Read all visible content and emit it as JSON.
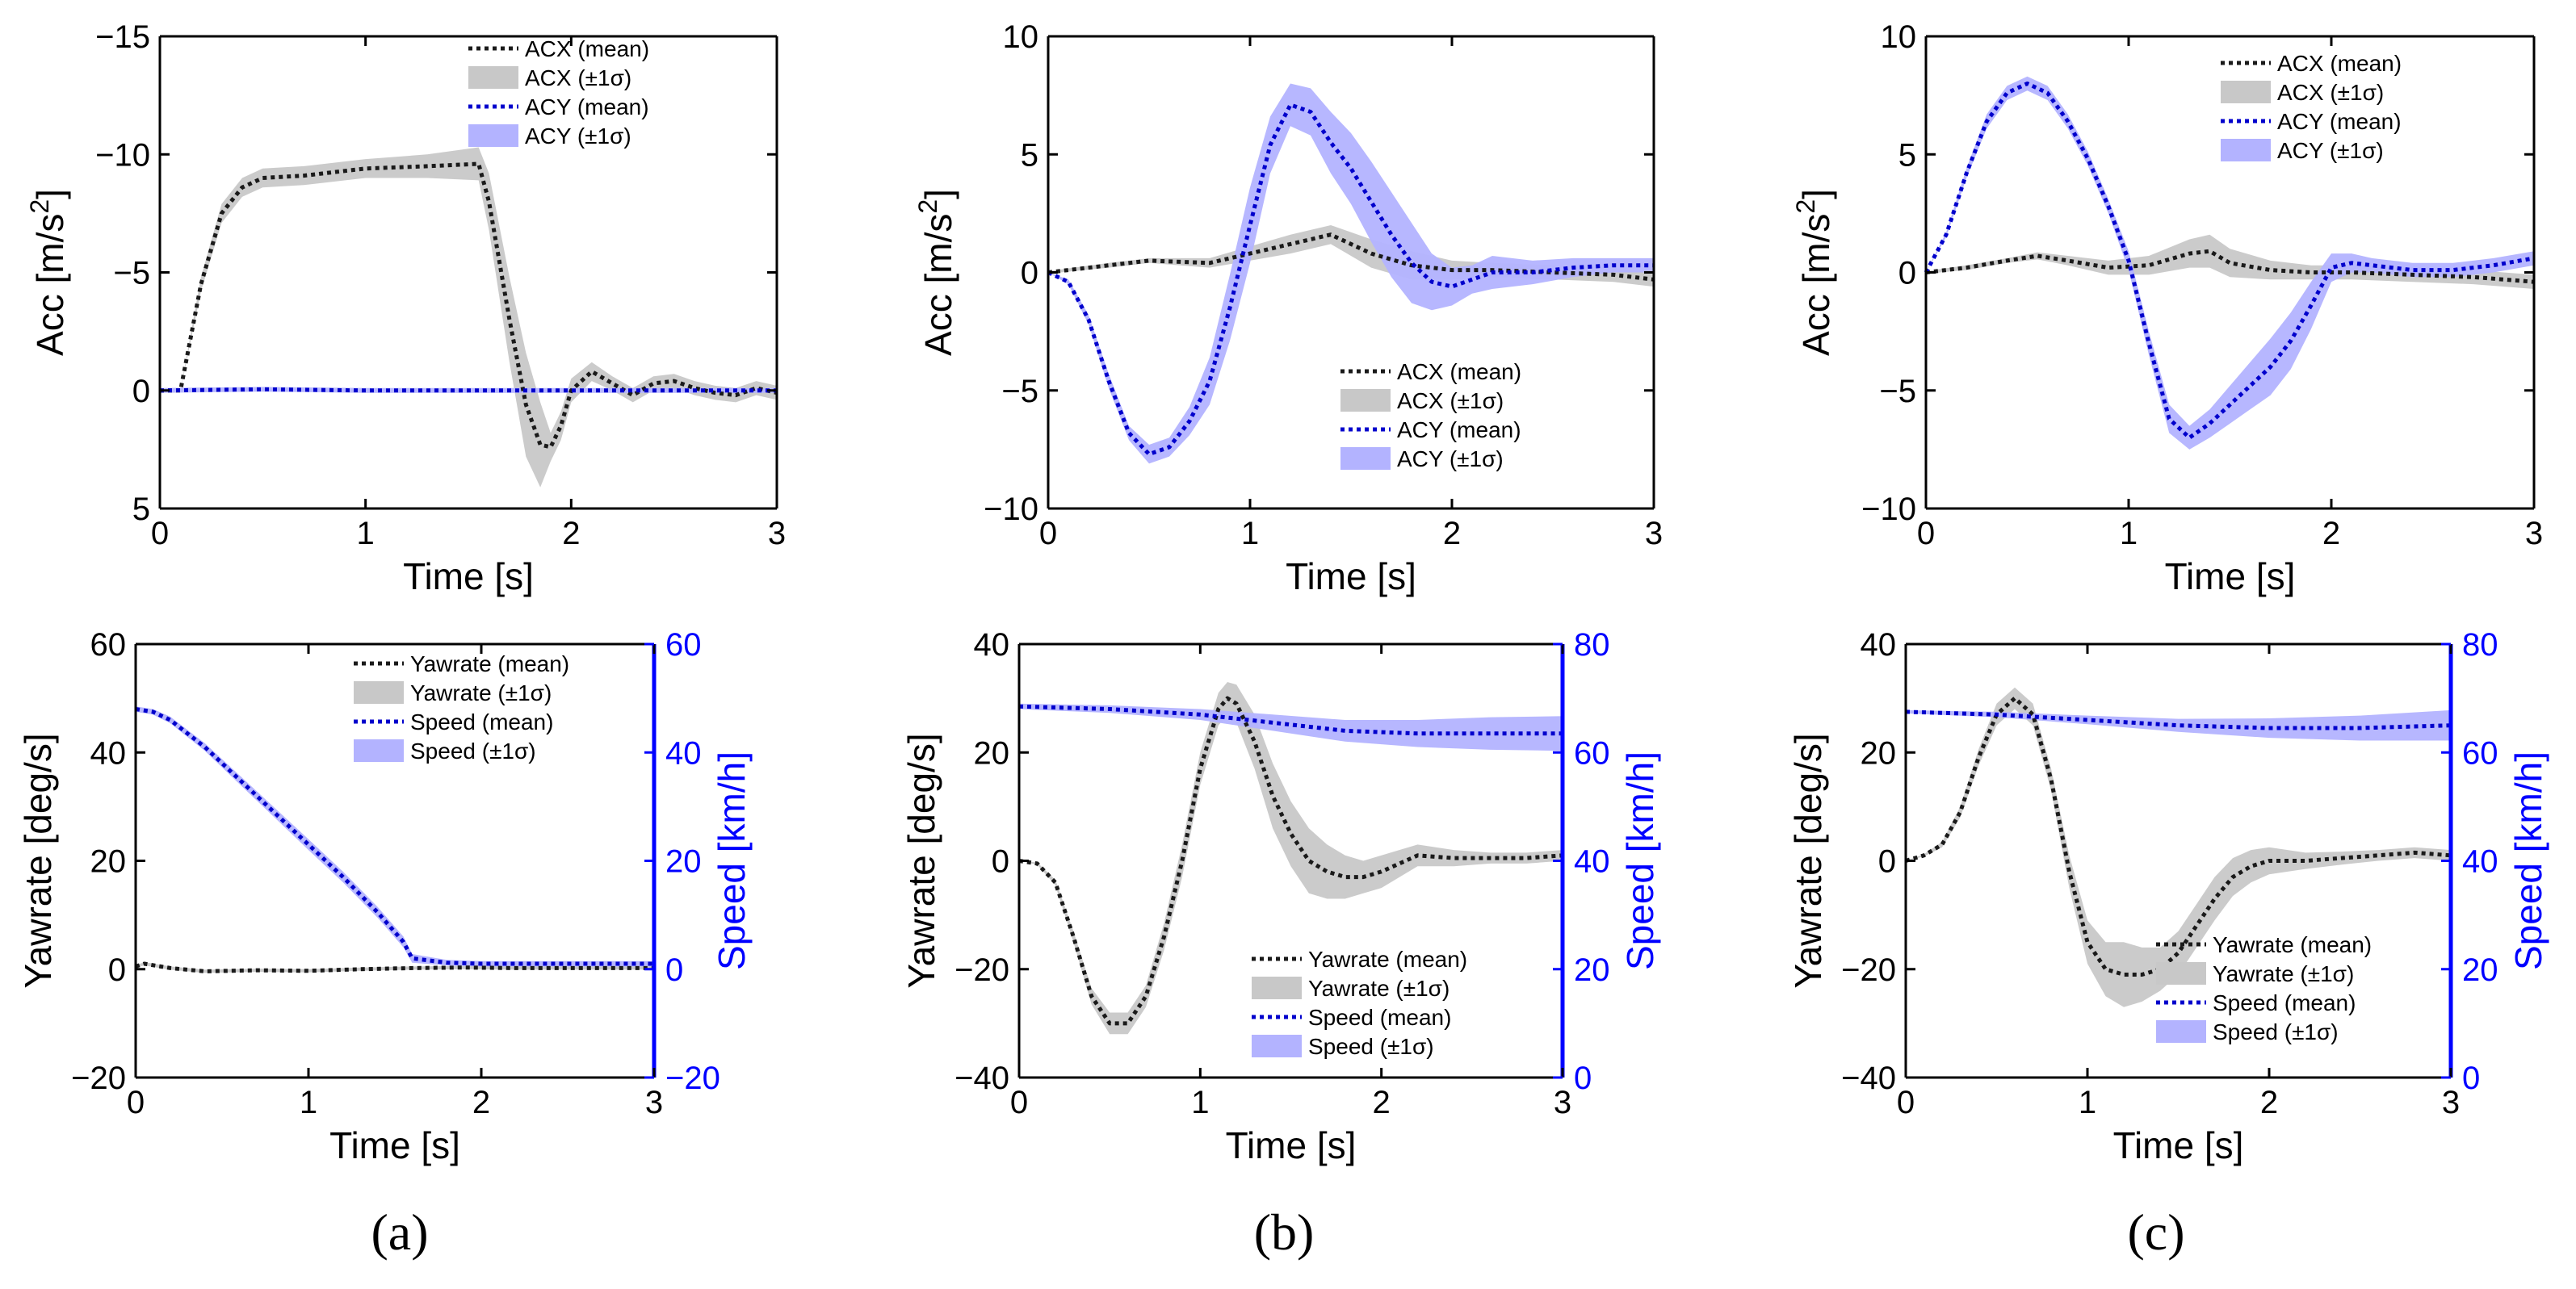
{
  "chart_data": [
    {
      "id": "a-acc",
      "type": "line",
      "panel": "a",
      "xlabel": "Time [s]",
      "ylabel": "Acc [m/s",
      "ylabel_sup": "2",
      "ylabel_tail": "]",
      "xlim": [
        0,
        3
      ],
      "ylim": [
        -15,
        5
      ],
      "y_reversed": true,
      "xticks": [
        "0",
        "1",
        "2",
        "3"
      ],
      "yticks": [
        "−15",
        "−10",
        "−5",
        "0",
        "5"
      ],
      "ytick_values": [
        -15,
        -10,
        -5,
        0,
        5
      ],
      "legend_position": "top-right",
      "series": [
        {
          "name": "ACX (mean)",
          "band_name": "ACX (±1σ)",
          "color": "#1a1a1a",
          "band_color": "#c8c8c8",
          "x": [
            0,
            0.1,
            0.2,
            0.3,
            0.4,
            0.5,
            0.7,
            1.0,
            1.3,
            1.55,
            1.6,
            1.7,
            1.78,
            1.85,
            1.9,
            1.95,
            2.0,
            2.1,
            2.2,
            2.3,
            2.4,
            2.5,
            2.6,
            2.7,
            2.8,
            2.9,
            3.0
          ],
          "y": [
            0,
            0,
            -4.5,
            -7.5,
            -8.6,
            -9.0,
            -9.1,
            -9.4,
            -9.5,
            -9.6,
            -8.0,
            -3.0,
            0.6,
            2.3,
            2.4,
            1.5,
            0,
            -0.8,
            -0.3,
            0.2,
            -0.3,
            -0.4,
            -0.1,
            0.1,
            0.2,
            -0.1,
            0.1
          ],
          "band": [
            0,
            0,
            0.3,
            0.4,
            0.4,
            0.4,
            0.4,
            0.4,
            0.5,
            0.7,
            1.2,
            1.8,
            2.2,
            1.8,
            0.6,
            0.6,
            0.5,
            0.4,
            0.3,
            0.3,
            0.3,
            0.3,
            0.3,
            0.3,
            0.3,
            0.3,
            0.3
          ]
        },
        {
          "name": "ACY (mean)",
          "band_name": "ACY (±1σ)",
          "color": "#0000cc",
          "band_color": "#b3b3ff",
          "x": [
            0,
            0.5,
            1,
            1.5,
            2,
            2.5,
            3
          ],
          "y": [
            0,
            -0.05,
            0,
            0,
            0,
            0,
            0
          ],
          "band": [
            0.1,
            0.1,
            0.1,
            0.1,
            0.1,
            0.1,
            0.1
          ]
        }
      ]
    },
    {
      "id": "b-acc",
      "type": "line",
      "panel": "b",
      "xlabel": "Time [s]",
      "ylabel": "Acc [m/s",
      "ylabel_sup": "2",
      "ylabel_tail": "]",
      "xlim": [
        0,
        3
      ],
      "ylim": [
        -10,
        10
      ],
      "y_reversed": false,
      "xticks": [
        "0",
        "1",
        "2",
        "3"
      ],
      "yticks": [
        "−10",
        "−5",
        "0",
        "5",
        "10"
      ],
      "ytick_values": [
        -10,
        -5,
        0,
        5,
        10
      ],
      "legend_position": "bottom-right",
      "series": [
        {
          "name": "ACX (mean)",
          "band_name": "ACX (±1σ)",
          "color": "#1a1a1a",
          "band_color": "#c8c8c8",
          "x": [
            0,
            0.3,
            0.5,
            0.8,
            1.0,
            1.2,
            1.4,
            1.6,
            1.8,
            2.0,
            2.2,
            2.5,
            2.8,
            3.0
          ],
          "y": [
            0,
            0.3,
            0.5,
            0.4,
            0.8,
            1.2,
            1.6,
            0.8,
            0.3,
            0.1,
            0.1,
            0,
            -0.1,
            -0.3
          ],
          "band": [
            0.05,
            0.1,
            0.1,
            0.2,
            0.3,
            0.4,
            0.4,
            0.6,
            0.6,
            0.4,
            0.3,
            0.3,
            0.3,
            0.3
          ]
        },
        {
          "name": "ACY (mean)",
          "band_name": "ACY (±1σ)",
          "color": "#0000cc",
          "band_color": "#b3b3ff",
          "x": [
            0,
            0.1,
            0.2,
            0.3,
            0.4,
            0.5,
            0.6,
            0.7,
            0.8,
            0.9,
            1.0,
            1.1,
            1.2,
            1.3,
            1.4,
            1.5,
            1.6,
            1.7,
            1.8,
            1.9,
            2.0,
            2.1,
            2.2,
            2.4,
            2.6,
            2.8,
            3.0
          ],
          "y": [
            0,
            -0.4,
            -2.0,
            -4.6,
            -6.8,
            -7.7,
            -7.4,
            -6.3,
            -4.6,
            -1.5,
            2.0,
            5.4,
            7.1,
            6.8,
            5.5,
            4.4,
            3.0,
            1.6,
            0.4,
            -0.4,
            -0.6,
            -0.3,
            0,
            0,
            0.2,
            0.3,
            0.3
          ],
          "band": [
            0,
            0.1,
            0.2,
            0.3,
            0.3,
            0.4,
            0.4,
            0.6,
            1.0,
            1.4,
            1.6,
            1.2,
            0.9,
            1.0,
            1.3,
            1.5,
            1.7,
            1.8,
            1.7,
            1.2,
            0.8,
            0.6,
            0.7,
            0.5,
            0.4,
            0.3,
            0.3
          ]
        }
      ]
    },
    {
      "id": "c-acc",
      "type": "line",
      "panel": "c",
      "xlabel": "Time [s]",
      "ylabel": "Acc [m/s",
      "ylabel_sup": "2",
      "ylabel_tail": "]",
      "xlim": [
        0,
        3
      ],
      "ylim": [
        -10,
        10
      ],
      "y_reversed": false,
      "xticks": [
        "0",
        "1",
        "2",
        "3"
      ],
      "yticks": [
        "−10",
        "−5",
        "0",
        "5",
        "10"
      ],
      "ytick_values": [
        -10,
        -5,
        0,
        5,
        10
      ],
      "legend_position": "top-right",
      "series": [
        {
          "name": "ACX (mean)",
          "band_name": "ACX (±1σ)",
          "color": "#1a1a1a",
          "band_color": "#c8c8c8",
          "x": [
            0,
            0.2,
            0.4,
            0.55,
            0.7,
            0.9,
            1.1,
            1.3,
            1.4,
            1.5,
            1.7,
            1.9,
            2.1,
            2.4,
            2.7,
            3.0
          ],
          "y": [
            0,
            0.2,
            0.5,
            0.7,
            0.5,
            0.2,
            0.3,
            0.8,
            0.9,
            0.4,
            0.1,
            0,
            0,
            -0.1,
            -0.2,
            -0.4
          ],
          "band": [
            0.05,
            0.1,
            0.1,
            0.15,
            0.2,
            0.3,
            0.4,
            0.6,
            0.7,
            0.6,
            0.4,
            0.3,
            0.3,
            0.3,
            0.3,
            0.3
          ]
        },
        {
          "name": "ACY (mean)",
          "band_name": "ACY (±1σ)",
          "color": "#0000cc",
          "band_color": "#b3b3ff",
          "x": [
            0,
            0.1,
            0.2,
            0.3,
            0.4,
            0.5,
            0.6,
            0.7,
            0.8,
            0.9,
            1.0,
            1.1,
            1.2,
            1.3,
            1.4,
            1.5,
            1.6,
            1.7,
            1.8,
            1.9,
            2.0,
            2.1,
            2.2,
            2.4,
            2.6,
            2.8,
            3.0
          ],
          "y": [
            0,
            1.6,
            4.2,
            6.4,
            7.6,
            8.0,
            7.6,
            6.4,
            4.8,
            2.8,
            0.5,
            -3.0,
            -6.2,
            -7.0,
            -6.4,
            -5.6,
            -4.8,
            -4.0,
            -2.9,
            -1.4,
            0.2,
            0.4,
            0.3,
            0.1,
            0.1,
            0.3,
            0.6
          ],
          "band": [
            0,
            0.1,
            0.2,
            0.3,
            0.3,
            0.3,
            0.3,
            0.3,
            0.3,
            0.3,
            0.4,
            0.5,
            0.6,
            0.5,
            0.6,
            0.8,
            1.0,
            1.2,
            1.2,
            1.0,
            0.6,
            0.4,
            0.3,
            0.3,
            0.3,
            0.3,
            0.3
          ]
        }
      ]
    },
    {
      "id": "a-yaw",
      "type": "line",
      "panel": "a",
      "xlabel": "Time [s]",
      "ylabel": "Yawrate [deg/s]",
      "y2label": "Speed [km/h]",
      "xlim": [
        0,
        3
      ],
      "ylim": [
        -20,
        60
      ],
      "y2lim": [
        -20,
        60
      ],
      "xticks": [
        "0",
        "1",
        "2",
        "3"
      ],
      "yticks": [
        "−20",
        "0",
        "20",
        "40",
        "60"
      ],
      "ytick_values": [
        -20,
        0,
        20,
        40,
        60
      ],
      "y2ticks": [
        "−20",
        "0",
        "20",
        "40",
        "60"
      ],
      "y2tick_values": [
        -20,
        0,
        20,
        40,
        60
      ],
      "legend_position": "top-right",
      "series": [
        {
          "name": "Yawrate (mean)",
          "band_name": "Yawrate (±1σ)",
          "color": "#1a1a1a",
          "band_color": "#c8c8c8",
          "axis": "left",
          "x": [
            0,
            0.05,
            0.2,
            0.4,
            0.7,
            1.0,
            1.3,
            1.6,
            1.9,
            2.2,
            2.6,
            3.0
          ],
          "y": [
            0.5,
            1.0,
            0.2,
            -0.4,
            -0.2,
            -0.3,
            0,
            0.2,
            0.3,
            0.2,
            0.2,
            0.2
          ],
          "band": [
            0.2,
            0.3,
            0.3,
            0.3,
            0.3,
            0.3,
            0.3,
            0.3,
            0.3,
            0.3,
            0.3,
            0.3
          ]
        },
        {
          "name": "Speed (mean)",
          "band_name": "Speed (±1σ)",
          "color": "#0000cc",
          "band_color": "#b3b3ff",
          "axis": "right",
          "x": [
            0,
            0.1,
            0.2,
            0.4,
            0.6,
            0.8,
            1.0,
            1.2,
            1.4,
            1.55,
            1.6,
            1.8,
            2.0,
            2.5,
            3.0
          ],
          "y": [
            48,
            47.5,
            46,
            41,
            35,
            29,
            23,
            17,
            10.5,
            5,
            2,
            1.2,
            1,
            1,
            1
          ],
          "band": [
            0.5,
            0.5,
            0.6,
            0.7,
            0.8,
            0.9,
            1.0,
            1.0,
            1.0,
            1.0,
            0.8,
            0.5,
            0.5,
            0.5,
            0.5
          ]
        }
      ]
    },
    {
      "id": "b-yaw",
      "type": "line",
      "panel": "b",
      "xlabel": "Time [s]",
      "ylabel": "Yawrate [deg/s]",
      "y2label": "Speed [km/h]",
      "xlim": [
        0,
        3
      ],
      "ylim": [
        -40,
        40
      ],
      "y2lim": [
        0,
        80
      ],
      "xticks": [
        "0",
        "1",
        "2",
        "3"
      ],
      "yticks": [
        "−40",
        "−20",
        "0",
        "20",
        "40"
      ],
      "ytick_values": [
        -40,
        -20,
        0,
        20,
        40
      ],
      "y2ticks": [
        "0",
        "20",
        "40",
        "60",
        "80"
      ],
      "y2tick_values": [
        0,
        20,
        40,
        60,
        80
      ],
      "legend_position": "bottom-right",
      "series": [
        {
          "name": "Yawrate (mean)",
          "band_name": "Yawrate (±1σ)",
          "color": "#1a1a1a",
          "band_color": "#c8c8c8",
          "axis": "left",
          "x": [
            0,
            0.1,
            0.2,
            0.3,
            0.4,
            0.5,
            0.6,
            0.7,
            0.8,
            0.9,
            1.0,
            1.1,
            1.15,
            1.2,
            1.3,
            1.4,
            1.5,
            1.6,
            1.7,
            1.8,
            1.9,
            2.0,
            2.2,
            2.4,
            2.6,
            2.8,
            3.0
          ],
          "y": [
            0,
            -0.5,
            -4,
            -14,
            -25,
            -30,
            -30,
            -25,
            -14,
            0,
            17,
            28,
            30,
            29,
            22,
            12,
            5,
            0,
            -2,
            -3,
            -3,
            -2,
            1,
            0.5,
            0.5,
            0.5,
            1
          ],
          "band": [
            0,
            0.2,
            0.5,
            1,
            1.5,
            2,
            2,
            2,
            2.5,
            3,
            3,
            3,
            3,
            3.5,
            5,
            6,
            6,
            6,
            5,
            4,
            3,
            3,
            2,
            1.5,
            1,
            1,
            1
          ]
        },
        {
          "name": "Speed  (mean)",
          "band_name": "Speed  (±1σ)",
          "color": "#0000cc",
          "band_color": "#b3b3ff",
          "axis": "right",
          "x": [
            0,
            0.5,
            1.0,
            1.4,
            1.8,
            2.2,
            2.6,
            3.0
          ],
          "y": [
            68.5,
            68,
            67,
            65.5,
            64,
            63.5,
            63.5,
            63.5
          ],
          "band": [
            0.5,
            0.7,
            1.0,
            1.5,
            2.0,
            2.5,
            3.0,
            3.2
          ]
        }
      ]
    },
    {
      "id": "c-yaw",
      "type": "line",
      "panel": "c",
      "xlabel": "Time [s]",
      "ylabel": "Yawrate [deg/s]",
      "y2label": "Speed [km/h]",
      "xlim": [
        0,
        3
      ],
      "ylim": [
        -40,
        40
      ],
      "y2lim": [
        0,
        80
      ],
      "xticks": [
        "0",
        "1",
        "2",
        "3"
      ],
      "yticks": [
        "−40",
        "−20",
        "0",
        "20",
        "40"
      ],
      "ytick_values": [
        -40,
        -20,
        0,
        20,
        40
      ],
      "y2ticks": [
        "0",
        "20",
        "40",
        "60",
        "80"
      ],
      "y2tick_values": [
        0,
        20,
        40,
        60,
        80
      ],
      "legend_position": "bottom-right",
      "series": [
        {
          "name": "Yawrate (mean)",
          "band_name": "Yawrate (±1σ)",
          "color": "#1a1a1a",
          "band_color": "#c8c8c8",
          "axis": "left",
          "x": [
            0,
            0.1,
            0.2,
            0.3,
            0.4,
            0.5,
            0.6,
            0.7,
            0.8,
            0.9,
            1.0,
            1.1,
            1.2,
            1.3,
            1.4,
            1.5,
            1.6,
            1.7,
            1.8,
            1.9,
            2.0,
            2.2,
            2.4,
            2.6,
            2.8,
            3.0
          ],
          "y": [
            0,
            1,
            3,
            9,
            19,
            27,
            30,
            27,
            15,
            -2,
            -15,
            -20,
            -21,
            -21,
            -20,
            -17,
            -12,
            -7,
            -3,
            -1,
            0,
            0,
            0.5,
            1,
            1.5,
            1
          ],
          "band": [
            0,
            0.2,
            0.5,
            1,
            1.5,
            2,
            2,
            2,
            2,
            3,
            4,
            5,
            6,
            5,
            4,
            4,
            4,
            4,
            3.5,
            3,
            2.5,
            1.5,
            1.2,
            1,
            1,
            1
          ]
        },
        {
          "name": "Speed  (mean)",
          "band_name": "Speed  (±1σ)",
          "color": "#0000cc",
          "band_color": "#b3b3ff",
          "axis": "right",
          "x": [
            0,
            0.5,
            1.0,
            1.5,
            2.0,
            2.5,
            3.0
          ],
          "y": [
            67.5,
            67,
            66,
            65,
            64.5,
            64.5,
            65
          ],
          "band": [
            0.3,
            0.5,
            0.8,
            1.2,
            1.8,
            2.3,
            2.8
          ]
        }
      ]
    }
  ],
  "panel_labels": {
    "a": "(a)",
    "b": "(b)",
    "c": "(c)"
  }
}
